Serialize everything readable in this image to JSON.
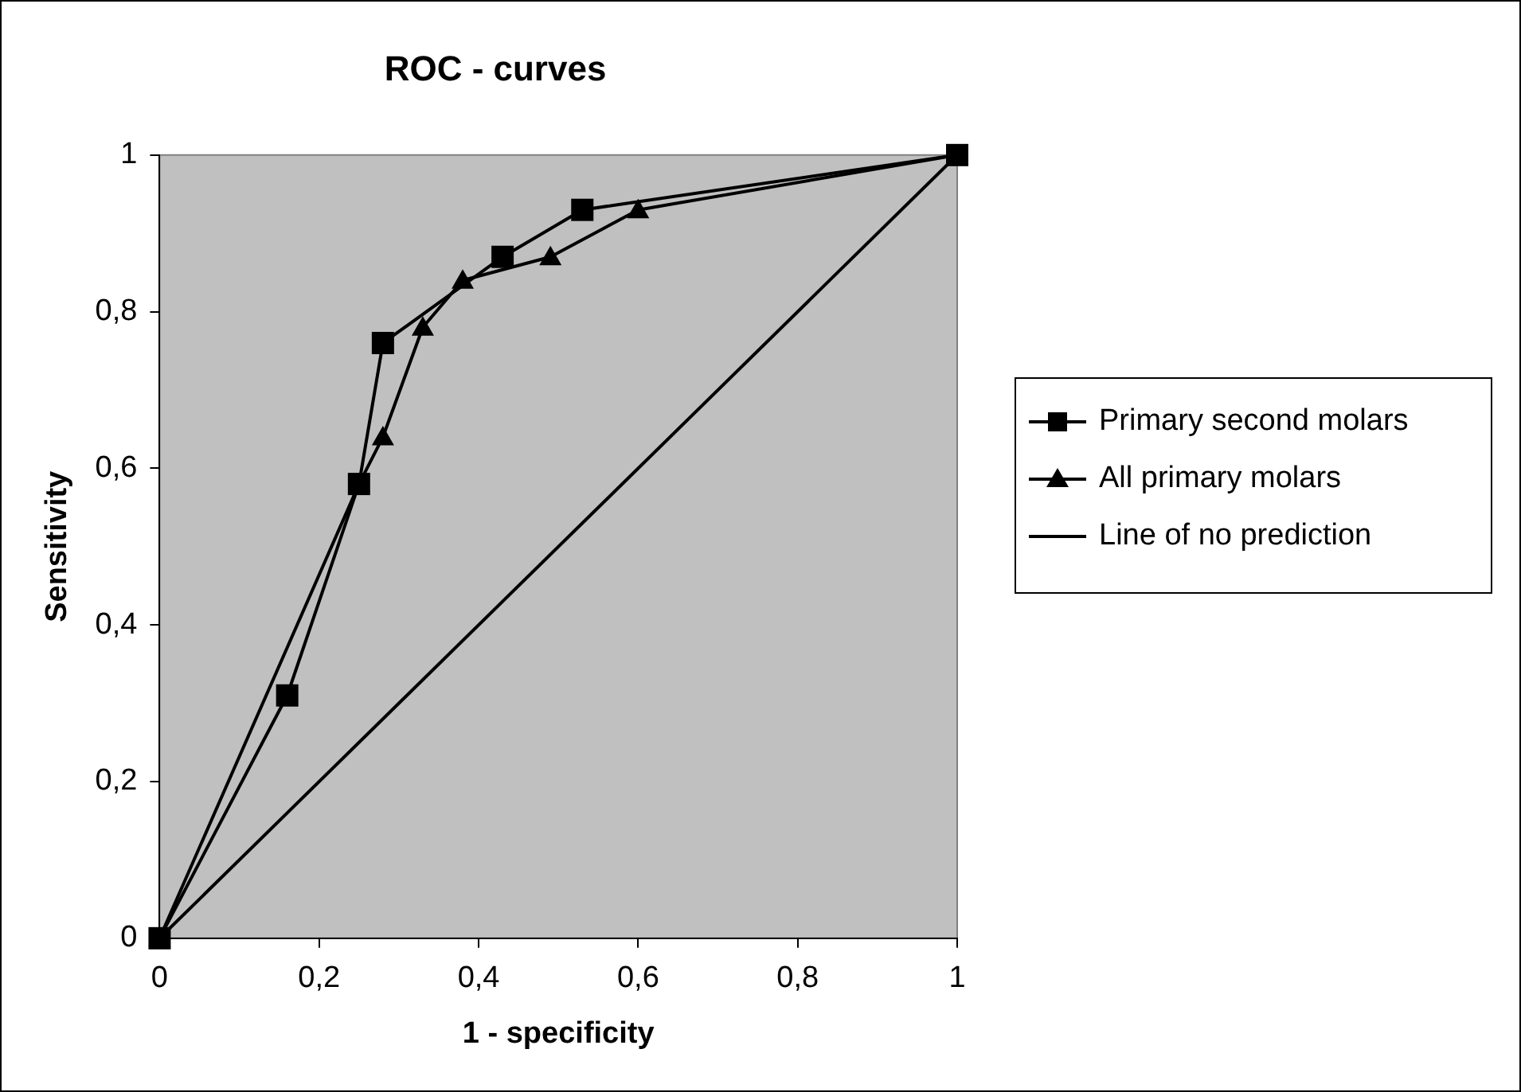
{
  "chart_data": {
    "type": "line",
    "title": "ROC - curves",
    "xlabel": "1 - specificity",
    "ylabel": "Sensitivity",
    "xlim": [
      0,
      1
    ],
    "ylim": [
      0,
      1
    ],
    "xticks": [
      0,
      {
        "value": 0.2,
        "label": "0,2"
      },
      {
        "value": 0.4,
        "label": "0,4"
      },
      {
        "value": 0.6,
        "label": "0,6"
      },
      {
        "value": 0.8,
        "label": "0,8"
      },
      1
    ],
    "yticks": [
      0,
      {
        "value": 0.2,
        "label": "0,2"
      },
      {
        "value": 0.4,
        "label": "0,4"
      },
      {
        "value": 0.6,
        "label": "0,6"
      },
      {
        "value": 0.8,
        "label": "0,8"
      },
      1
    ],
    "grid": false,
    "legend": "right",
    "series": [
      {
        "name": "Primary second molars",
        "color": "#000000",
        "marker": "square",
        "x": [
          0,
          0.16,
          0.25,
          0.28,
          0.43,
          0.53,
          1
        ],
        "values": [
          0,
          0.31,
          0.58,
          0.76,
          0.87,
          0.93,
          1
        ]
      },
      {
        "name": "All primary molars",
        "color": "#000000",
        "marker": "triangle",
        "x": [
          0,
          0.25,
          0.28,
          0.33,
          0.38,
          0.49,
          0.6,
          1
        ],
        "values": [
          0,
          0.58,
          0.64,
          0.78,
          0.84,
          0.87,
          0.93,
          1
        ]
      },
      {
        "name": "Line of no prediction",
        "color": "#000000",
        "marker": "none",
        "x": [
          0,
          1
        ],
        "values": [
          0,
          1
        ]
      }
    ]
  }
}
